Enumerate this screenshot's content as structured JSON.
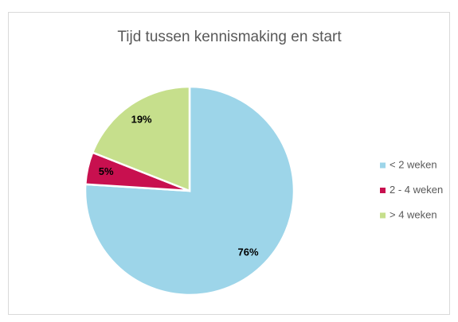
{
  "chart_data": {
    "type": "pie",
    "title": "Tijd tussen kennismaking en start",
    "categories": [
      "< 2 weken",
      "2 - 4 weken",
      "> 4 weken"
    ],
    "values": [
      76,
      5,
      19
    ],
    "value_labels": [
      "76%",
      "5%",
      "19%"
    ],
    "colors": [
      "#9dd5e9",
      "#c8104f",
      "#c6df8c"
    ],
    "legend": "right"
  }
}
